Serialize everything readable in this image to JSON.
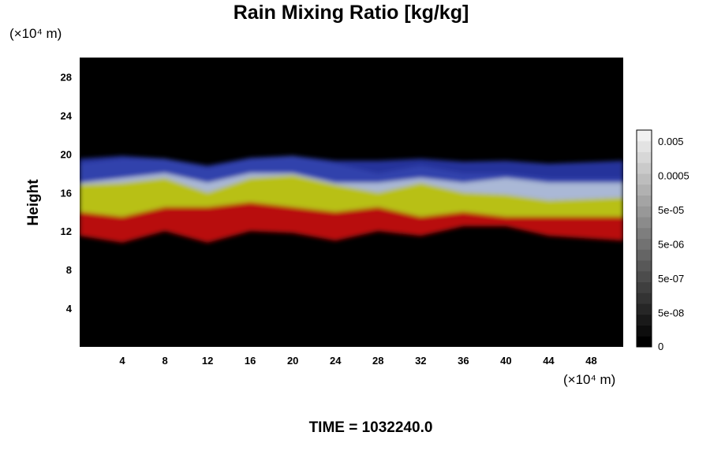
{
  "title": "Rain Mixing Ratio [kg/kg]",
  "time_label": "TIME = 1032240.0",
  "chart_data": {
    "type": "heatmap",
    "title": "Rain Mixing Ratio [kg/kg]",
    "ylabel": "Height",
    "yunit": "(×10⁴ m)",
    "xunit": "(×10⁴ m)",
    "xlim": [
      0,
      51
    ],
    "ylim": [
      0,
      30
    ],
    "xticks": [
      4,
      8,
      12,
      16,
      20,
      24,
      28,
      32,
      36,
      40,
      44,
      48
    ],
    "yticks": [
      4,
      8,
      12,
      16,
      20,
      24,
      28
    ],
    "background_color": "#000000",
    "colorbar": {
      "labels": [
        "0.005",
        "0.0005",
        "5e-05",
        "5e-06",
        "5e-07",
        "5e-08",
        "0"
      ],
      "levels": 20,
      "color_low": "#000000",
      "color_high": "#ffffff"
    },
    "bands": [
      {
        "name": "red layer",
        "color": "#c81010",
        "y_bottom": [
          11.5,
          10.8,
          12.0,
          10.8,
          12.0,
          11.8,
          11.0,
          12.0,
          11.5,
          12.5,
          12.5,
          11.5,
          11.0
        ],
        "y_top": [
          14.0,
          13.5,
          14.5,
          14.5,
          15.0,
          14.5,
          14.0,
          14.5,
          13.5,
          14.0,
          13.5,
          13.5,
          13.5
        ]
      },
      {
        "name": "yellow-green layer",
        "color": "#c8d018",
        "y_bottom": [
          14.0,
          13.5,
          14.5,
          14.5,
          15.0,
          14.5,
          14.0,
          14.5,
          13.5,
          14.0,
          13.5,
          13.5,
          13.5
        ],
        "y_top": [
          16.8,
          17.0,
          17.5,
          16.0,
          17.5,
          17.8,
          16.8,
          16.0,
          17.0,
          16.0,
          15.8,
          15.2,
          15.5
        ]
      },
      {
        "name": "white layer",
        "color": "#b8c8e8",
        "y_bottom": [
          16.8,
          17.0,
          17.5,
          16.0,
          17.5,
          17.8,
          16.8,
          16.0,
          17.0,
          16.0,
          15.8,
          15.2,
          15.5
        ],
        "y_top": [
          19.0,
          19.5,
          19.5,
          18.5,
          19.5,
          19.8,
          19.0,
          18.0,
          18.8,
          18.0,
          18.0,
          17.5,
          17.5
        ]
      },
      {
        "name": "blue layer",
        "color": "#2838a8",
        "y_bottom": [
          17.0,
          17.5,
          18.0,
          17.0,
          18.0,
          18.0,
          17.0,
          17.0,
          17.5,
          17.0,
          17.5,
          17.0,
          17.0
        ],
        "y_top": [
          19.5,
          19.8,
          19.5,
          18.8,
          19.6,
          19.8,
          19.3,
          19.3,
          19.5,
          19.2,
          19.3,
          19.0,
          19.3
        ]
      }
    ],
    "band_x": [
      0,
      4,
      8,
      12,
      16,
      20,
      24,
      28,
      32,
      36,
      40,
      44,
      51
    ]
  }
}
